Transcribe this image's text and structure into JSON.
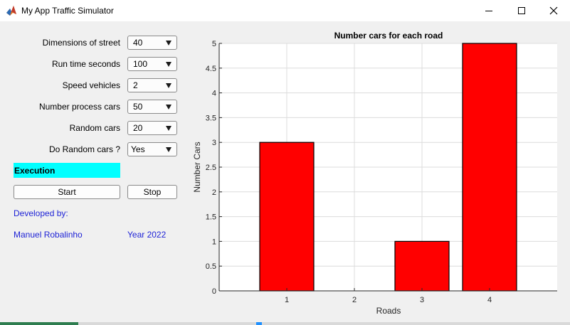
{
  "window": {
    "title": "My App Traffic Simulator",
    "icons": {
      "app": "matlab-icon",
      "minimize": "minimize-icon",
      "maximize": "maximize-icon",
      "close": "close-icon"
    }
  },
  "controls": {
    "fields": [
      {
        "label": "Dimensions of street",
        "value": "40"
      },
      {
        "label": "Run time seconds",
        "value": "100"
      },
      {
        "label": "Speed vehicles",
        "value": "2"
      },
      {
        "label": "Number process cars",
        "value": "50"
      },
      {
        "label": "Random cars",
        "value": "20"
      },
      {
        "label": "Do Random cars ?",
        "value": "Yes"
      }
    ],
    "status": "Execution",
    "status_color": "#00ffff",
    "start_label": "Start",
    "stop_label": "Stop"
  },
  "credits": {
    "developed_by": "Developed by:",
    "author": "Manuel Robalinho",
    "year": "Year 2022",
    "color": "#1f23d6"
  },
  "chart_data": {
    "type": "bar",
    "title": "Number cars for each road",
    "xlabel": "Roads",
    "ylabel": "Number Cars",
    "categories": [
      "1",
      "2",
      "3",
      "4"
    ],
    "values": [
      3,
      0,
      1,
      5
    ],
    "xlim": [
      0,
      5
    ],
    "ylim": [
      0,
      5
    ],
    "yticks": [
      "0",
      "0.5",
      "1",
      "1.5",
      "2",
      "2.5",
      "3",
      "3.5",
      "4",
      "4.5",
      "5"
    ],
    "grid": true,
    "bar_color": "#ff0000"
  }
}
